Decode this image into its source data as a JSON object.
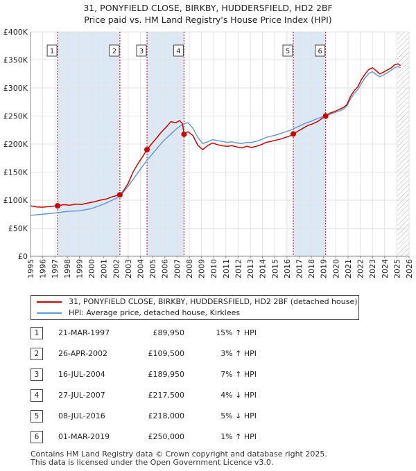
{
  "header": {
    "title_line1": "31, PONYFIELD CLOSE, BIRKBY, HUDDERSFIELD, HD2 2BF",
    "title_line2": "Price paid vs. HM Land Registry's House Price Index (HPI)"
  },
  "colors": {
    "property": "#cc0000",
    "hpi": "#6699cc",
    "band": "#dde8f5",
    "marker_line": "#cc0000"
  },
  "legend": {
    "property_label": "31, PONYFIELD CLOSE, BIRKBY, HUDDERSFIELD, HD2 2BF (detached house)",
    "hpi_label": "HPI: Average price, detached house, Kirklees"
  },
  "sales": [
    {
      "num": "1",
      "date": "21-MAR-1997",
      "price": "£89,950",
      "hpi": "15% ↑ HPI"
    },
    {
      "num": "2",
      "date": "26-APR-2002",
      "price": "£109,500",
      "hpi": "3% ↑ HPI"
    },
    {
      "num": "3",
      "date": "16-JUL-2004",
      "price": "£189,950",
      "hpi": "7% ↑ HPI"
    },
    {
      "num": "4",
      "date": "27-JUL-2007",
      "price": "£217,500",
      "hpi": "4% ↓ HPI"
    },
    {
      "num": "5",
      "date": "08-JUL-2016",
      "price": "£218,000",
      "hpi": "5% ↓ HPI"
    },
    {
      "num": "6",
      "date": "01-MAR-2019",
      "price": "£250,000",
      "hpi": "1% ↑ HPI"
    }
  ],
  "footer": {
    "line1": "Contains HM Land Registry data © Crown copyright and database right 2025.",
    "line2": "This data is licensed under the Open Government Licence v3.0."
  },
  "chart_data": {
    "type": "line",
    "title": "31, PONYFIELD CLOSE, BIRKBY, HUDDERSFIELD, HD2 2BF — Price paid vs. HM Land Registry's House Price Index (HPI)",
    "xlabel": "",
    "ylabel": "",
    "xlim": [
      1995,
      2026
    ],
    "ylim": [
      0,
      400000
    ],
    "x_ticks": [
      "1995",
      "1996",
      "1997",
      "1998",
      "1999",
      "2000",
      "2001",
      "2002",
      "2003",
      "2004",
      "2005",
      "2006",
      "2007",
      "2008",
      "2009",
      "2010",
      "2011",
      "2012",
      "2013",
      "2014",
      "2015",
      "2016",
      "2017",
      "2018",
      "2019",
      "2020",
      "2021",
      "2022",
      "2023",
      "2024",
      "2025",
      "2026"
    ],
    "y_ticks": [
      {
        "value": 0,
        "label": "£0"
      },
      {
        "value": 50000,
        "label": "£50K"
      },
      {
        "value": 100000,
        "label": "£100K"
      },
      {
        "value": 150000,
        "label": "£150K"
      },
      {
        "value": 200000,
        "label": "£200K"
      },
      {
        "value": 250000,
        "label": "£250K"
      },
      {
        "value": 300000,
        "label": "£300K"
      },
      {
        "value": 350000,
        "label": "£350K"
      },
      {
        "value": 400000,
        "label": "£400K"
      }
    ],
    "grid": true,
    "future_hatch_from": 2025.0,
    "shaded_bands": [
      [
        1997.22,
        2002.32
      ],
      [
        2004.54,
        2007.57
      ],
      [
        2016.52,
        2019.17
      ]
    ],
    "sale_markers": [
      {
        "label": "1",
        "x": 1997.22,
        "y": 89950
      },
      {
        "label": "2",
        "x": 2002.32,
        "y": 109500
      },
      {
        "label": "3",
        "x": 2004.54,
        "y": 189950
      },
      {
        "label": "4",
        "x": 2007.57,
        "y": 217500
      },
      {
        "label": "5",
        "x": 2016.52,
        "y": 218000
      },
      {
        "label": "6",
        "x": 2019.17,
        "y": 250000
      }
    ],
    "series": [
      {
        "name": "31, PONYFIELD CLOSE, BIRKBY, HUDDERSFIELD, HD2 2BF (detached house)",
        "color": "#cc0000",
        "x": [
          1995.0,
          1995.5,
          1996.0,
          1996.5,
          1997.22,
          1997.7,
          1998.2,
          1998.7,
          1999.2,
          1999.7,
          2000.2,
          2000.7,
          2001.2,
          2001.7,
          2002.0,
          2002.32,
          2002.6,
          2003.0,
          2003.4,
          2003.8,
          2004.2,
          2004.54,
          2004.9,
          2005.3,
          2005.7,
          2006.1,
          2006.5,
          2006.9,
          2007.2,
          2007.45,
          2007.57,
          2007.9,
          2008.3,
          2008.7,
          2009.1,
          2009.5,
          2009.9,
          2010.3,
          2010.7,
          2011.1,
          2011.5,
          2011.9,
          2012.3,
          2012.7,
          2013.1,
          2013.5,
          2013.9,
          2014.3,
          2014.7,
          2015.1,
          2015.5,
          2015.9,
          2016.3,
          2016.52,
          2016.9,
          2017.3,
          2017.7,
          2018.1,
          2018.5,
          2018.9,
          2019.17,
          2019.5,
          2019.9,
          2020.3,
          2020.6,
          2020.9,
          2021.2,
          2021.5,
          2021.8,
          2022.1,
          2022.4,
          2022.7,
          2023.0,
          2023.3,
          2023.6,
          2023.9,
          2024.2,
          2024.5,
          2024.8,
          2025.1,
          2025.3
        ],
        "y": [
          90000,
          88000,
          87500,
          88500,
          89950,
          92000,
          91000,
          93000,
          92500,
          95000,
          97000,
          100000,
          102000,
          106000,
          108000,
          109500,
          116000,
          130000,
          150000,
          165000,
          178000,
          189950,
          200000,
          210000,
          221000,
          230000,
          240000,
          238000,
          242000,
          236000,
          217500,
          222000,
          215000,
          198000,
          190000,
          197000,
          202000,
          199000,
          197000,
          196000,
          197000,
          195000,
          193000,
          196000,
          194000,
          196000,
          199000,
          203000,
          205000,
          207000,
          209000,
          212000,
          215000,
          218000,
          223000,
          228000,
          233000,
          236000,
          240000,
          246000,
          250000,
          255000,
          258000,
          262000,
          265000,
          270000,
          285000,
          295000,
          302000,
          315000,
          325000,
          333000,
          336000,
          331000,
          325000,
          328000,
          332000,
          335000,
          341000,
          343000,
          340000
        ]
      },
      {
        "name": "HPI: Average price, detached house, Kirklees",
        "color": "#6699cc",
        "x": [
          1995.0,
          1995.5,
          1996.0,
          1996.5,
          1997.0,
          1997.5,
          1998.0,
          1998.5,
          1999.0,
          1999.5,
          2000.0,
          2000.5,
          2001.0,
          2001.5,
          2002.0,
          2002.5,
          2003.0,
          2003.5,
          2004.0,
          2004.5,
          2005.0,
          2005.5,
          2006.0,
          2006.5,
          2007.0,
          2007.5,
          2007.9,
          2008.3,
          2008.7,
          2009.1,
          2009.5,
          2009.9,
          2010.3,
          2010.7,
          2011.1,
          2011.5,
          2011.9,
          2012.3,
          2012.7,
          2013.1,
          2013.5,
          2013.9,
          2014.3,
          2014.7,
          2015.1,
          2015.5,
          2015.9,
          2016.3,
          2016.7,
          2017.1,
          2017.5,
          2017.9,
          2018.3,
          2018.7,
          2019.1,
          2019.5,
          2019.9,
          2020.3,
          2020.6,
          2020.9,
          2021.2,
          2021.5,
          2021.8,
          2022.1,
          2022.4,
          2022.7,
          2023.0,
          2023.3,
          2023.6,
          2023.9,
          2024.2,
          2024.5,
          2024.8,
          2025.1,
          2025.3
        ],
        "y": [
          73000,
          74000,
          75000,
          76000,
          77000,
          78500,
          80000,
          80500,
          81000,
          83000,
          85000,
          89000,
          93000,
          98000,
          103000,
          112000,
          125000,
          140000,
          155000,
          170000,
          183000,
          196000,
          208000,
          218000,
          228000,
          236000,
          238000,
          228000,
          212000,
          201000,
          204000,
          208000,
          206000,
          205000,
          203000,
          204000,
          202000,
          201000,
          203000,
          203000,
          205000,
          208000,
          212000,
          214000,
          216000,
          219000,
          222000,
          225000,
          229000,
          233000,
          237000,
          240000,
          244000,
          247000,
          250000,
          253000,
          256000,
          259000,
          262000,
          268000,
          280000,
          290000,
          297000,
          308000,
          318000,
          326000,
          329000,
          324000,
          320000,
          323000,
          327000,
          331000,
          336000,
          338000,
          336000
        ]
      }
    ]
  }
}
